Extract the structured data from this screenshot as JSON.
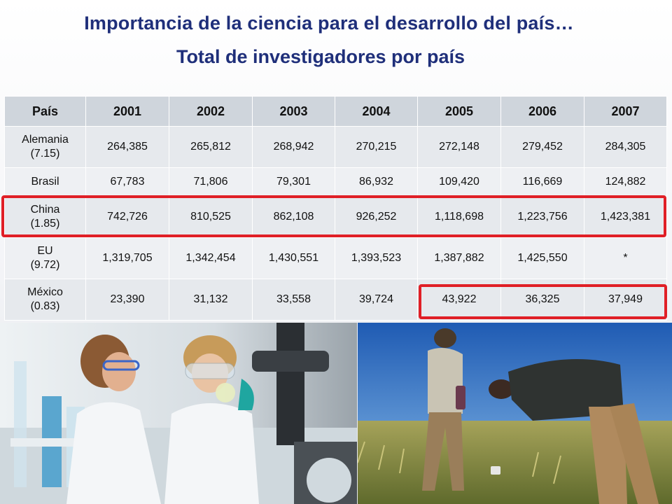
{
  "header": {
    "title": "Importancia de la ciencia para el desarrollo del país…",
    "subtitle": "Total de investigadores por país"
  },
  "table": {
    "columns": [
      "País",
      "2001",
      "2002",
      "2003",
      "2004",
      "2005",
      "2006",
      "2007"
    ],
    "rows": [
      {
        "country": "Alemania\n(7.15)",
        "values": [
          "264,385",
          "265,812",
          "268,942",
          "270,215",
          "272,148",
          "279,452",
          "284,305"
        ]
      },
      {
        "country": "Brasil",
        "values": [
          "67,783",
          "71,806",
          "79,301",
          "86,932",
          "109,420",
          "116,669",
          "124,882"
        ]
      },
      {
        "country": "China\n(1.85)",
        "values": [
          "742,726",
          "810,525",
          "862,108",
          "926,252",
          "1,118,698",
          "1,223,756",
          "1,423,381"
        ]
      },
      {
        "country": "EU\n(9.72)",
        "values": [
          "1,319,705",
          "1,342,454",
          "1,430,551",
          "1,393,523",
          "1,387,882",
          "1,425,550",
          "*"
        ]
      },
      {
        "country": "México\n(0.83)",
        "values": [
          "23,390",
          "31,132",
          "33,558",
          "39,724",
          "43,922",
          "36,325",
          "37,949"
        ]
      }
    ]
  },
  "highlight_color": "#e01f26"
}
